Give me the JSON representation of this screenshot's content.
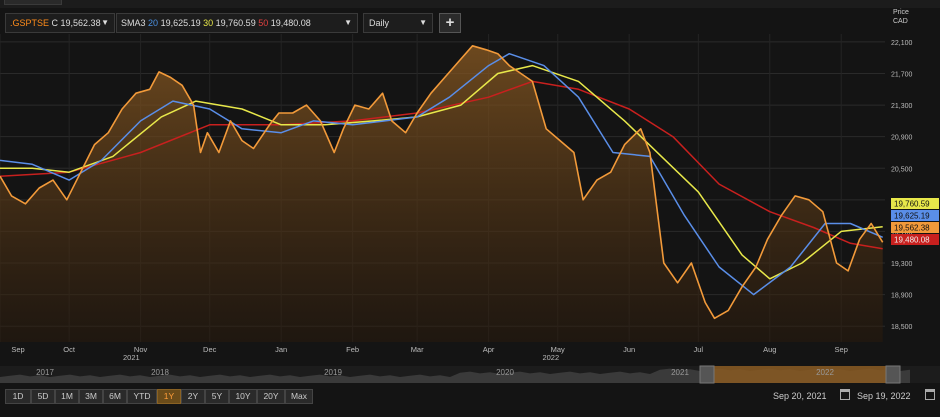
{
  "toolbar": {
    "symbol": ".GSPTSE",
    "symbol_value": "C 19,562.38",
    "sma_label": "SMA3",
    "sma20_period": "20",
    "sma20_value": "19,625.19",
    "sma30_period": "30",
    "sma30_value": "19,760.59",
    "sma50_period": "50",
    "sma50_value": "19,480.08",
    "interval": "Daily",
    "add_symbol": "+"
  },
  "price_axis": {
    "title_line1": "Price",
    "title_line2": "CAD",
    "ticks": [
      "22,100",
      "21,700",
      "21,300",
      "20,900",
      "20,500",
      "20,100",
      "19,700",
      "19,300",
      "18,900",
      "18,500"
    ]
  },
  "value_tags": {
    "sma30": "19,760.59",
    "sma20": "19,625.19",
    "close": "19,562.38",
    "sma50": "19,480.08"
  },
  "month_axis": {
    "months": [
      "Sep",
      "Oct",
      "Nov",
      "Dec",
      "Jan",
      "Feb",
      "Mar",
      "Apr",
      "May",
      "Jun",
      "Jul",
      "Aug",
      "Sep"
    ],
    "years": [
      "2021",
      "2022"
    ]
  },
  "navigator": {
    "years": [
      "2017",
      "2018",
      "2019",
      "2020",
      "2021",
      "2022"
    ]
  },
  "range_buttons": [
    "1D",
    "5D",
    "1M",
    "3M",
    "6M",
    "YTD",
    "1Y",
    "2Y",
    "5Y",
    "10Y",
    "20Y",
    "Max"
  ],
  "active_range": "1Y",
  "date_range": {
    "start": "Sep 20, 2021",
    "end": "Sep 19, 2022"
  },
  "colors": {
    "close": "#f29a3a",
    "sma20": "#5a8ee8",
    "sma30": "#e8e84a",
    "sma50": "#c8201e",
    "background": "#141414",
    "active_button": "#6b4c1a"
  },
  "chart_data": {
    "type": "line",
    "ylim": [
      18300,
      22200
    ],
    "x_range": [
      "2021-09-01",
      "2022-09-20"
    ],
    "series": [
      {
        "name": ".GSPTSE",
        "points": [
          [
            "2021-09-01",
            20400
          ],
          [
            "2021-09-06",
            20150
          ],
          [
            "2021-09-12",
            20050
          ],
          [
            "2021-09-18",
            20250
          ],
          [
            "2021-09-24",
            20350
          ],
          [
            "2021-09-30",
            20100
          ],
          [
            "2021-10-06",
            20450
          ],
          [
            "2021-10-12",
            20800
          ],
          [
            "2021-10-18",
            20950
          ],
          [
            "2021-10-24",
            21250
          ],
          [
            "2021-10-30",
            21450
          ],
          [
            "2021-11-05",
            21500
          ],
          [
            "2021-11-09",
            21720
          ],
          [
            "2021-11-14",
            21650
          ],
          [
            "2021-11-19",
            21550
          ],
          [
            "2021-11-24",
            21300
          ],
          [
            "2021-11-27",
            20700
          ],
          [
            "2021-11-30",
            20950
          ],
          [
            "2021-12-05",
            20700
          ],
          [
            "2021-12-10",
            21100
          ],
          [
            "2021-12-15",
            20850
          ],
          [
            "2021-12-20",
            20750
          ],
          [
            "2021-12-27",
            21050
          ],
          [
            "2021-12-31",
            21200
          ],
          [
            "2022-01-06",
            21200
          ],
          [
            "2022-01-12",
            21300
          ],
          [
            "2022-01-18",
            21100
          ],
          [
            "2022-01-24",
            20700
          ],
          [
            "2022-01-28",
            21000
          ],
          [
            "2022-02-02",
            21300
          ],
          [
            "2022-02-08",
            21250
          ],
          [
            "2022-02-14",
            21450
          ],
          [
            "2022-02-18",
            21100
          ],
          [
            "2022-02-24",
            20950
          ],
          [
            "2022-03-01",
            21200
          ],
          [
            "2022-03-07",
            21450
          ],
          [
            "2022-03-13",
            21650
          ],
          [
            "2022-03-19",
            21850
          ],
          [
            "2022-03-25",
            22050
          ],
          [
            "2022-03-31",
            22000
          ],
          [
            "2022-04-05",
            21950
          ],
          [
            "2022-04-10",
            21800
          ],
          [
            "2022-04-15",
            21700
          ],
          [
            "2022-04-20",
            21600
          ],
          [
            "2022-04-26",
            21000
          ],
          [
            "2022-05-02",
            20850
          ],
          [
            "2022-05-08",
            20700
          ],
          [
            "2022-05-12",
            20100
          ],
          [
            "2022-05-18",
            20350
          ],
          [
            "2022-05-24",
            20450
          ],
          [
            "2022-05-30",
            20800
          ],
          [
            "2022-06-06",
            21000
          ],
          [
            "2022-06-10",
            20700
          ],
          [
            "2022-06-16",
            19300
          ],
          [
            "2022-06-22",
            19050
          ],
          [
            "2022-06-28",
            19300
          ],
          [
            "2022-07-04",
            18800
          ],
          [
            "2022-07-08",
            18600
          ],
          [
            "2022-07-14",
            18700
          ],
          [
            "2022-07-20",
            19000
          ],
          [
            "2022-07-26",
            19250
          ],
          [
            "2022-07-31",
            19600
          ],
          [
            "2022-08-06",
            19900
          ],
          [
            "2022-08-12",
            20150
          ],
          [
            "2022-08-18",
            20100
          ],
          [
            "2022-08-24",
            19950
          ],
          [
            "2022-08-30",
            19300
          ],
          [
            "2022-09-04",
            19200
          ],
          [
            "2022-09-09",
            19600
          ],
          [
            "2022-09-14",
            19800
          ],
          [
            "2022-09-19",
            19562.38
          ]
        ]
      },
      {
        "name": "SMA 20",
        "points": [
          [
            "2021-09-01",
            20600
          ],
          [
            "2021-09-15",
            20550
          ],
          [
            "2021-10-01",
            20350
          ],
          [
            "2021-10-15",
            20600
          ],
          [
            "2021-11-01",
            21100
          ],
          [
            "2021-11-15",
            21350
          ],
          [
            "2021-12-01",
            21250
          ],
          [
            "2021-12-15",
            21000
          ],
          [
            "2022-01-01",
            20950
          ],
          [
            "2022-01-15",
            21100
          ],
          [
            "2022-02-01",
            21050
          ],
          [
            "2022-02-15",
            21100
          ],
          [
            "2022-03-01",
            21150
          ],
          [
            "2022-03-15",
            21400
          ],
          [
            "2022-04-01",
            21800
          ],
          [
            "2022-04-10",
            21950
          ],
          [
            "2022-04-25",
            21800
          ],
          [
            "2022-05-10",
            21400
          ],
          [
            "2022-05-25",
            20700
          ],
          [
            "2022-06-10",
            20650
          ],
          [
            "2022-06-25",
            19900
          ],
          [
            "2022-07-10",
            19250
          ],
          [
            "2022-07-25",
            18900
          ],
          [
            "2022-08-10",
            19250
          ],
          [
            "2022-08-25",
            19800
          ],
          [
            "2022-09-05",
            19800
          ],
          [
            "2022-09-19",
            19625.19
          ]
        ]
      },
      {
        "name": "SMA 30",
        "points": [
          [
            "2021-09-01",
            20500
          ],
          [
            "2021-09-15",
            20500
          ],
          [
            "2021-10-01",
            20450
          ],
          [
            "2021-10-20",
            20650
          ],
          [
            "2021-11-10",
            21150
          ],
          [
            "2021-11-25",
            21350
          ],
          [
            "2021-12-15",
            21250
          ],
          [
            "2022-01-01",
            21050
          ],
          [
            "2022-01-20",
            21050
          ],
          [
            "2022-02-10",
            21100
          ],
          [
            "2022-03-01",
            21150
          ],
          [
            "2022-03-20",
            21300
          ],
          [
            "2022-04-05",
            21700
          ],
          [
            "2022-04-20",
            21800
          ],
          [
            "2022-05-10",
            21600
          ],
          [
            "2022-05-30",
            21100
          ],
          [
            "2022-06-15",
            20650
          ],
          [
            "2022-07-01",
            20200
          ],
          [
            "2022-07-20",
            19400
          ],
          [
            "2022-08-01",
            19100
          ],
          [
            "2022-08-15",
            19300
          ],
          [
            "2022-09-01",
            19700
          ],
          [
            "2022-09-19",
            19760.59
          ]
        ]
      },
      {
        "name": "SMA 50",
        "points": [
          [
            "2021-09-01",
            20400
          ],
          [
            "2021-10-01",
            20450
          ],
          [
            "2021-11-01",
            20700
          ],
          [
            "2021-12-01",
            21050
          ],
          [
            "2022-01-01",
            21050
          ],
          [
            "2022-02-01",
            21100
          ],
          [
            "2022-03-01",
            21200
          ],
          [
            "2022-04-01",
            21400
          ],
          [
            "2022-04-20",
            21600
          ],
          [
            "2022-05-10",
            21500
          ],
          [
            "2022-06-01",
            21250
          ],
          [
            "2022-06-20",
            20900
          ],
          [
            "2022-07-10",
            20300
          ],
          [
            "2022-08-01",
            19950
          ],
          [
            "2022-08-20",
            19750
          ],
          [
            "2022-09-05",
            19550
          ],
          [
            "2022-09-19",
            19480.08
          ]
        ]
      }
    ]
  }
}
